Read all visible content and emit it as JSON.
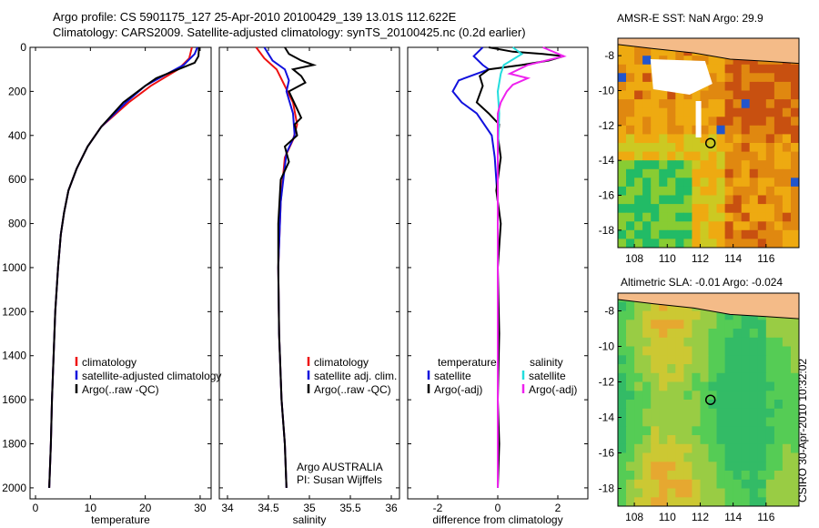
{
  "header": {
    "line1": "Argo profile: CS 5901175_127 25-Apr-2010 20100429_139 13.01S 112.622E",
    "line2": "Climatology: CARS2009. Satellite-adjusted climatology: synTS_20100425.nc (0.2d earlier)"
  },
  "credit": "CSIRO 30-Apr-2010 10:32:02",
  "colors": {
    "climatology": "#ee1111",
    "satellite": "#1111dd",
    "argo": "#000000",
    "sat_salinity": "#22dddd",
    "argo_salinity": "#ee22ee",
    "land": "#f4bb88",
    "track": "#000000"
  },
  "chart_data": [
    {
      "type": "line",
      "xlabel": "temperature",
      "xlim": [
        -1,
        32
      ],
      "ylim": [
        2050,
        0
      ],
      "xticks": [
        "0",
        "10",
        "20",
        "30"
      ],
      "yticks": [
        "0",
        "200",
        "400",
        "600",
        "800",
        "1000",
        "1200",
        "1400",
        "1600",
        "1800",
        "2000"
      ],
      "legend": [
        "climatology",
        "satellite-adjusted climatology",
        "Argo(..raw -QC)"
      ],
      "series": [
        {
          "key": "climatology",
          "points": [
            [
              28.5,
              0
            ],
            [
              28,
              50
            ],
            [
              26,
              100
            ],
            [
              21,
              175
            ],
            [
              17,
              250
            ],
            [
              12,
              360
            ],
            [
              9.5,
              450
            ],
            [
              7.5,
              550
            ],
            [
              6,
              650
            ],
            [
              5.2,
              750
            ],
            [
              4.6,
              850
            ],
            [
              4.1,
              1000
            ],
            [
              3.6,
              1200
            ],
            [
              3.3,
              1400
            ],
            [
              3,
              1600
            ],
            [
              2.8,
              1800
            ],
            [
              2.5,
              2000
            ]
          ]
        },
        {
          "key": "satellite",
          "points": [
            [
              29.5,
              0
            ],
            [
              29,
              30
            ],
            [
              27,
              80
            ],
            [
              24,
              120
            ],
            [
              20,
              175
            ],
            [
              16.5,
              250
            ],
            [
              12,
              360
            ],
            [
              9.5,
              450
            ],
            [
              7.5,
              550
            ],
            [
              6,
              650
            ],
            [
              5.2,
              750
            ],
            [
              4.6,
              850
            ],
            [
              4.1,
              1000
            ],
            [
              3.6,
              1200
            ],
            [
              3.3,
              1400
            ],
            [
              3,
              1600
            ],
            [
              2.8,
              1800
            ],
            [
              2.5,
              2000
            ]
          ]
        },
        {
          "key": "argo",
          "points": [
            [
              29.8,
              0
            ],
            [
              29.7,
              40
            ],
            [
              29,
              70
            ],
            [
              27,
              90
            ],
            [
              25,
              110
            ],
            [
              22,
              140
            ],
            [
              20,
              175
            ],
            [
              16,
              250
            ],
            [
              12,
              360
            ],
            [
              9.5,
              450
            ],
            [
              7.5,
              550
            ],
            [
              6,
              650
            ],
            [
              5.2,
              750
            ],
            [
              4.6,
              850
            ],
            [
              4.1,
              1000
            ],
            [
              3.6,
              1200
            ],
            [
              3.3,
              1400
            ],
            [
              3,
              1600
            ],
            [
              2.8,
              1800
            ],
            [
              2.5,
              2000
            ]
          ]
        }
      ]
    },
    {
      "type": "line",
      "xlabel": "salinity",
      "xlim": [
        33.9,
        36.1
      ],
      "ylim": [
        2050,
        0
      ],
      "xticks": [
        "34",
        "34.5",
        "35",
        "35.5",
        "36"
      ],
      "legend": [
        "climatology",
        "satellite adj. clim.",
        "Argo(..raw -QC)"
      ],
      "annotation": [
        "Argo AUSTRALIA",
        "PI: Susan Wijffels"
      ],
      "series": [
        {
          "key": "climatology",
          "points": [
            [
              34.35,
              0
            ],
            [
              34.45,
              50
            ],
            [
              34.6,
              100
            ],
            [
              34.8,
              250
            ],
            [
              34.85,
              350
            ],
            [
              34.8,
              420
            ],
            [
              34.7,
              500
            ],
            [
              34.65,
              700
            ],
            [
              34.62,
              1000
            ],
            [
              34.63,
              1300
            ],
            [
              34.66,
              1600
            ],
            [
              34.7,
              1800
            ],
            [
              34.72,
              2000
            ]
          ]
        },
        {
          "key": "satellite",
          "points": [
            [
              34.45,
              0
            ],
            [
              34.55,
              60
            ],
            [
              34.7,
              100
            ],
            [
              34.75,
              150
            ],
            [
              34.72,
              200
            ],
            [
              34.8,
              300
            ],
            [
              34.82,
              400
            ],
            [
              34.72,
              480
            ],
            [
              34.65,
              700
            ],
            [
              34.62,
              1000
            ],
            [
              34.63,
              1300
            ],
            [
              34.66,
              1600
            ],
            [
              34.7,
              1800
            ],
            [
              34.72,
              2000
            ]
          ]
        },
        {
          "key": "argo",
          "points": [
            [
              34.7,
              0
            ],
            [
              34.75,
              30
            ],
            [
              34.9,
              60
            ],
            [
              35.05,
              80
            ],
            [
              34.8,
              100
            ],
            [
              34.9,
              130
            ],
            [
              34.95,
              160
            ],
            [
              34.75,
              200
            ],
            [
              34.85,
              280
            ],
            [
              34.9,
              320
            ],
            [
              34.82,
              350
            ],
            [
              34.85,
              400
            ],
            [
              34.7,
              450
            ],
            [
              34.75,
              520
            ],
            [
              34.65,
              600
            ],
            [
              34.62,
              800
            ],
            [
              34.62,
              1000
            ],
            [
              34.63,
              1300
            ],
            [
              34.66,
              1600
            ],
            [
              34.7,
              1800
            ],
            [
              34.72,
              2000
            ]
          ]
        }
      ]
    },
    {
      "type": "line",
      "xlabel": "difference from climatology",
      "xlim": [
        -3,
        3
      ],
      "ylim": [
        2050,
        0
      ],
      "xticks": [
        "-2",
        "0",
        "2"
      ],
      "legend_temperature": {
        "heading": "temperature",
        "items": [
          "satellite",
          "Argo(-adj)"
        ]
      },
      "legend_salinity": {
        "heading": "salinity",
        "items": [
          "satellite",
          "Argo(-adj)"
        ]
      },
      "series": [
        {
          "key": "satellite",
          "points": [
            [
              -0.5,
              0
            ],
            [
              -0.8,
              40
            ],
            [
              -0.5,
              80
            ],
            [
              -0.3,
              100
            ],
            [
              -1.3,
              150
            ],
            [
              -1.5,
              200
            ],
            [
              -1.2,
              250
            ],
            [
              -0.7,
              300
            ],
            [
              -0.2,
              400
            ],
            [
              -0.1,
              500
            ],
            [
              0,
              700
            ],
            [
              0,
              1000
            ],
            [
              0,
              2000
            ]
          ]
        },
        {
          "key": "argo",
          "points": [
            [
              -0.3,
              0
            ],
            [
              0.5,
              20
            ],
            [
              1.5,
              30
            ],
            [
              2.2,
              40
            ],
            [
              1.7,
              60
            ],
            [
              0.8,
              80
            ],
            [
              -0.3,
              100
            ],
            [
              -0.6,
              130
            ],
            [
              -0.5,
              175
            ],
            [
              -0.7,
              250
            ],
            [
              -0.3,
              300
            ],
            [
              0.05,
              350
            ],
            [
              0,
              400
            ],
            [
              0.1,
              500
            ],
            [
              -0.05,
              650
            ],
            [
              0.1,
              800
            ],
            [
              0,
              1000
            ],
            [
              0.05,
              1300
            ],
            [
              0,
              1600
            ],
            [
              0.05,
              1800
            ],
            [
              0,
              2000
            ]
          ]
        },
        {
          "key": "sat_salinity",
          "points": [
            [
              0.5,
              0
            ],
            [
              0.8,
              30
            ],
            [
              0.2,
              80
            ],
            [
              0.1,
              120
            ],
            [
              0,
              200
            ],
            [
              0.05,
              300
            ],
            [
              0,
              500
            ],
            [
              0,
              1000
            ],
            [
              0,
              2000
            ]
          ]
        },
        {
          "key": "argo_salinity",
          "points": [
            [
              1.5,
              0
            ],
            [
              2.2,
              40
            ],
            [
              1,
              80
            ],
            [
              0.4,
              120
            ],
            [
              1,
              140
            ],
            [
              0.5,
              170
            ],
            [
              0.3,
              200
            ],
            [
              0.1,
              250
            ],
            [
              0,
              300
            ],
            [
              0,
              500
            ],
            [
              0,
              1000
            ],
            [
              0,
              2000
            ]
          ]
        }
      ]
    },
    {
      "type": "heatmap",
      "title": "AMSR-E SST: NaN Argo: 29.9",
      "xlim": [
        107,
        118
      ],
      "ylim": [
        -19,
        -7
      ],
      "xticks": [
        "108",
        "110",
        "112",
        "114",
        "116"
      ],
      "yticks": [
        "-8",
        "-10",
        "-12",
        "-14",
        "-16",
        "-18"
      ],
      "float_position": [
        112.622,
        -13.01
      ]
    },
    {
      "type": "heatmap",
      "title": "Altimetric SLA: -0.01 Argo: -0.024",
      "xlim": [
        107,
        118
      ],
      "ylim": [
        -19,
        -7
      ],
      "xticks": [
        "108",
        "110",
        "112",
        "114",
        "116"
      ],
      "yticks": [
        "-8",
        "-10",
        "-12",
        "-14",
        "-16",
        "-18"
      ],
      "float_position": [
        112.622,
        -13.01
      ]
    }
  ]
}
